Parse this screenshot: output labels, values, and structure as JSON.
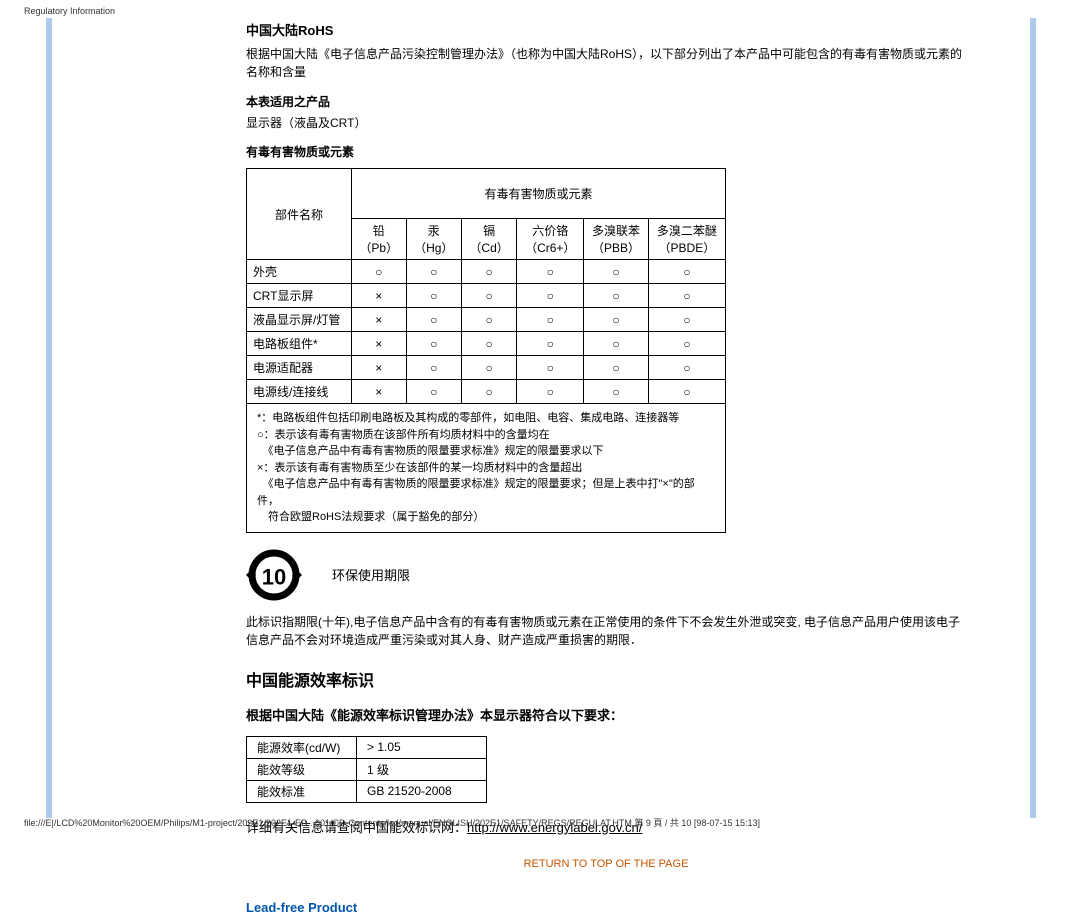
{
  "header": {
    "title": "Regulatory Information"
  },
  "rohs": {
    "title": "中国大陆RoHS",
    "intro": "根据中国大陆《电子信息产品污染控制管理办法》（也称为中国大陆RoHS），以下部分列出了本产品中可能包含的有毒有害物质或元素的名称和含量",
    "applicable_heading": "本表适用之产品",
    "applicable_text": "显示器（液晶及CRT）",
    "substances_heading": "有毒有害物质或元素",
    "table": {
      "part_header": "部件名称",
      "group_header": "有毒有害物质或元素",
      "columns": [
        {
          "top": "铅",
          "bottom": "（Pb）"
        },
        {
          "top": "汞",
          "bottom": "（Hg）"
        },
        {
          "top": "镉",
          "bottom": "（Cd）"
        },
        {
          "top": "六价铬",
          "bottom": "（Cr6+）"
        },
        {
          "top": "多溴联苯",
          "bottom": "（PBB）"
        },
        {
          "top": "多溴二苯醚",
          "bottom": "（PBDE）"
        }
      ],
      "rows": [
        {
          "name": "外壳",
          "v": [
            "○",
            "○",
            "○",
            "○",
            "○",
            "○"
          ]
        },
        {
          "name": "CRT显示屏",
          "v": [
            "×",
            "○",
            "○",
            "○",
            "○",
            "○"
          ]
        },
        {
          "name": "液晶显示屏/灯管",
          "v": [
            "×",
            "○",
            "○",
            "○",
            "○",
            "○"
          ]
        },
        {
          "name": "电路板组件*",
          "v": [
            "×",
            "○",
            "○",
            "○",
            "○",
            "○"
          ]
        },
        {
          "name": "电源适配器",
          "v": [
            "×",
            "○",
            "○",
            "○",
            "○",
            "○"
          ]
        },
        {
          "name": "电源线/连接线",
          "v": [
            "×",
            "○",
            "○",
            "○",
            "○",
            "○"
          ]
        }
      ],
      "footnote": "*：电路板组件包括印刷电路板及其构成的零部件，如电阻、电容、集成电路、连接器等\n○：表示该有毒有害物质在该部件所有均质材料中的含量均在\n　《电子信息产品中有毒有害物质的限量要求标准》规定的限量要求以下\n×：表示该有毒有害物质至少在该部件的某一均质材料中的含量超出\n　《电子信息产品中有毒有害物质的限量要求标准》规定的限量要求；但是上表中打\"×\"的部件，\n　符合欧盟RoHS法规要求（属于豁免的部分）"
    },
    "eco_label": "环保使用期限",
    "eco_number": "10",
    "eco_paragraph": "此标识指期限(十年),电子信息产品中含有的有毒有害物质或元素在正常使用的条件下不会发生外泄或突变, 电子信息产品用户使用该电子信息产品不会对环境造成严重污染或对其人身、财产造成严重损害的期限．"
  },
  "energy": {
    "title": "中国能源效率标识",
    "subtitle": "根据中国大陆《能源效率标识管理办法》本显示器符合以下要求：",
    "rows": [
      {
        "label": "能源效率(cd/W)",
        "value": "> 1.05"
      },
      {
        "label": "能效等级",
        "value": "1 级"
      },
      {
        "label": "能效标准",
        "value": "GB 21520-2008"
      }
    ],
    "link_text": "详细有关信息请查阅中国能效标识网：",
    "link_url": "http://www.energylabel.gov.cn/"
  },
  "return_link": "RETURN TO TOP OF THE PAGE",
  "leadfree_heading": "Lead-free Product",
  "footer": "file:///E|/LCD%20Monitor%20OEM/Philips/M1-project/202E1/202E1-ED...001/CD-Contents/lcd/manual/ENGLISH/202E1/SAFETY/REGS/REGULAT.HTM 第 9 頁 / 共 10 [98-07-15 15:13]"
}
